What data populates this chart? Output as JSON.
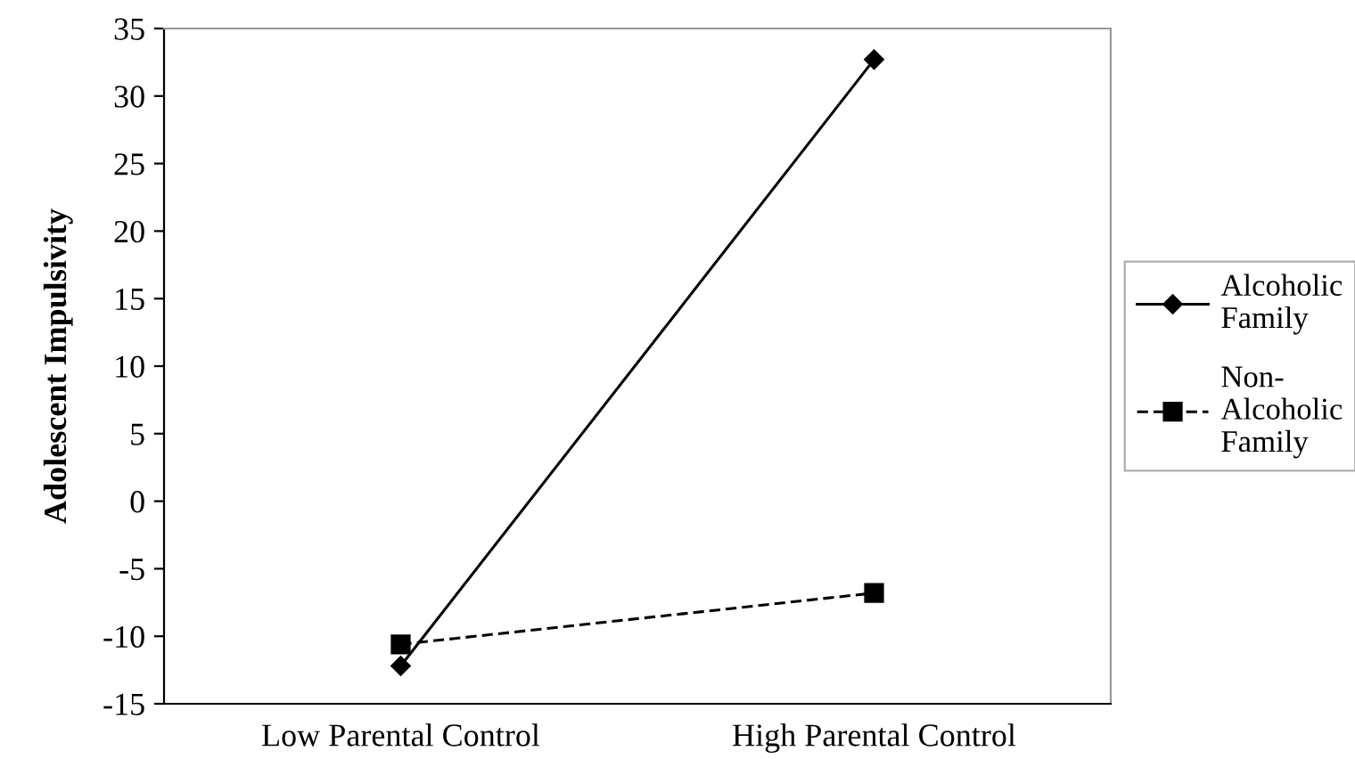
{
  "chart_data": {
    "type": "line",
    "ylabel": "Adolescent Impulsivity",
    "categories": [
      "Low Parental Control",
      "High Parental Control"
    ],
    "series": [
      {
        "name": "Alcoholic\nFamily",
        "color": "#000000",
        "values": [
          -12.2,
          32.7
        ],
        "marker": "diamond",
        "line_style": "solid"
      },
      {
        "name": "Non-\nAlcoholic\nFamily",
        "color": "#000000",
        "values": [
          -10.6,
          -6.8
        ],
        "marker": "square",
        "line_style": "dashed"
      }
    ],
    "ylim": [
      -15,
      35
    ],
    "yticks": [
      -15,
      -10,
      -5,
      0,
      5,
      10,
      15,
      20,
      25,
      30,
      35
    ],
    "grid": false,
    "legend": "right"
  }
}
